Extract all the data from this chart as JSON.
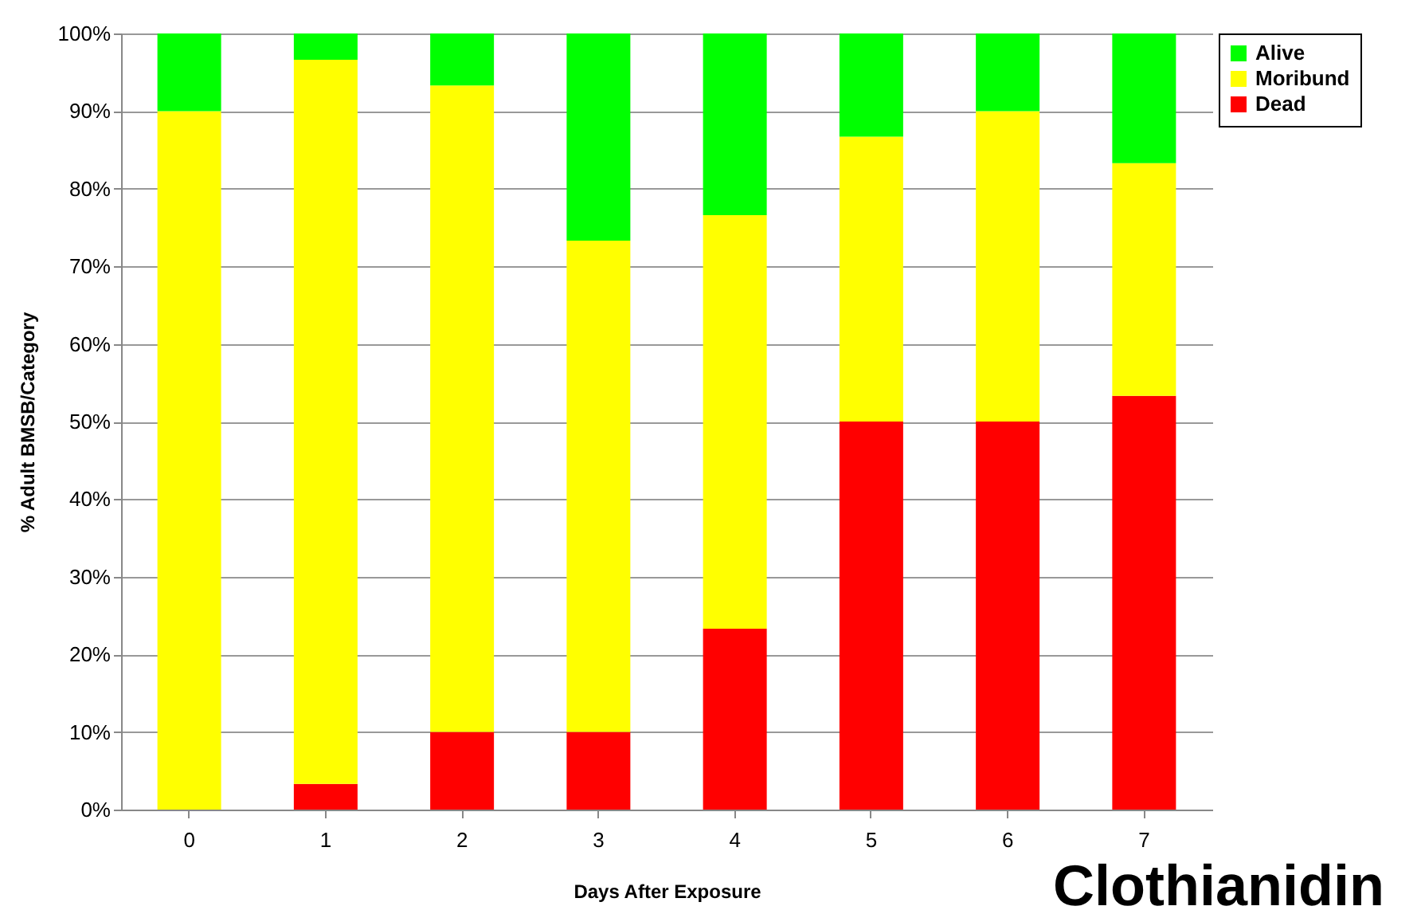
{
  "chart_data": {
    "type": "bar",
    "stacked": true,
    "xlabel": "Days After Exposure",
    "ylabel": "% Adult BMSB/Category",
    "categories": [
      "0",
      "1",
      "2",
      "3",
      "4",
      "5",
      "6",
      "7"
    ],
    "series": [
      {
        "name": "Dead",
        "color": "#ff0000",
        "values": [
          0,
          3.3,
          10,
          10,
          23.3,
          50,
          50,
          53.3
        ]
      },
      {
        "name": "Moribund",
        "color": "#ffff00",
        "values": [
          90,
          93.3,
          83.3,
          63.3,
          53.3,
          36.7,
          40,
          30
        ]
      },
      {
        "name": "Alive",
        "color": "#00ff00",
        "values": [
          10,
          3.4,
          6.7,
          26.7,
          23.4,
          13.3,
          10,
          16.7
        ]
      }
    ],
    "ylim": [
      0,
      100
    ],
    "yticks": [
      {
        "value": 0,
        "label": "0%"
      },
      {
        "value": 10,
        "label": "10%"
      },
      {
        "value": 20,
        "label": "20%"
      },
      {
        "value": 30,
        "label": "30%"
      },
      {
        "value": 40,
        "label": "40%"
      },
      {
        "value": 50,
        "label": "50%"
      },
      {
        "value": 60,
        "label": "60%"
      },
      {
        "value": 70,
        "label": "70%"
      },
      {
        "value": 80,
        "label": "80%"
      },
      {
        "value": 90,
        "label": "90%"
      },
      {
        "value": 100,
        "label": "100%"
      }
    ],
    "grid": "y",
    "legend": "right",
    "annotations": [
      "Clothianidin"
    ]
  }
}
